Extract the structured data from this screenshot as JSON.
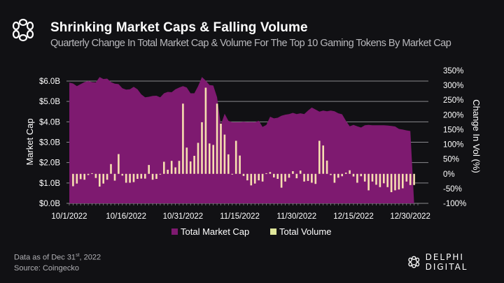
{
  "header": {
    "logo_icon": "delphi-knot-icon",
    "title": "Shrinking Market Caps & Falling Volume",
    "subtitle": "Quarterly Change In Total Market Cap & Volume For The Top 10 Gaming Tokens By Market Cap"
  },
  "footer": {
    "data_as_of_prefix": "Data as of Dec 31",
    "data_as_of_sup": "st",
    "data_as_of_suffix": ", 2022",
    "source": "Source: Coingecko",
    "brand": "DELPHI DIGITAL"
  },
  "colors": {
    "market_cap": "#7e1a70",
    "volume": "#f6deb0",
    "legend_volume": "#dfe69a",
    "background": "#111114"
  },
  "chart_data": {
    "type": "area+bar",
    "title": "Shrinking Market Caps & Falling Volume",
    "xlabel": "",
    "ylabel_left": "Market Cap",
    "ylabel_right": "Change In Vol (%)",
    "ylim_left": [
      0,
      6.0
    ],
    "ylim_right": [
      -100,
      350
    ],
    "left_ticks": [
      "$0.0B",
      "$1.0B",
      "$2.0B",
      "$3.0B",
      "$4.0B",
      "$5.0B",
      "$6.0B"
    ],
    "right_ticks": [
      "-100%",
      "-50%",
      "0%",
      "50%",
      "100%",
      "150%",
      "200%",
      "250%",
      "300%",
      "350%"
    ],
    "x_ticks": [
      "10/1/2022",
      "10/16/2022",
      "10/31/2022",
      "11/15/2022",
      "11/30/2022",
      "12/15/2022",
      "12/30/2022"
    ],
    "x_range_days": [
      0,
      92
    ],
    "x_start_date": "10/1/2022",
    "grid": true,
    "legend": [
      "Total Market Cap",
      "Total Volume"
    ],
    "legend_position": "bottom-center",
    "series": [
      {
        "name": "Total Market Cap",
        "type": "area",
        "axis": "left",
        "unit": "USD billions",
        "day_offset": [
          0,
          1,
          2,
          3,
          4,
          5,
          6,
          7,
          8,
          9,
          10,
          11,
          12,
          13,
          14,
          15,
          16,
          17,
          18,
          19,
          20,
          21,
          22,
          23,
          24,
          25,
          26,
          27,
          28,
          29,
          30,
          31,
          32,
          33,
          34,
          35,
          36,
          37,
          38,
          39,
          40,
          41,
          42,
          43,
          44,
          45,
          46,
          47,
          48,
          49,
          50,
          51,
          52,
          53,
          54,
          55,
          56,
          57,
          58,
          59,
          60,
          61,
          62,
          63,
          64,
          65,
          66,
          67,
          68,
          69,
          70,
          71,
          72,
          73,
          74,
          75,
          76,
          77,
          78,
          79,
          80,
          81,
          82,
          83,
          84,
          85,
          86,
          87,
          88,
          89,
          90,
          91
        ],
        "values": [
          5.92,
          5.88,
          5.75,
          5.85,
          5.95,
          6.0,
          5.95,
          5.93,
          6.2,
          6.1,
          6.12,
          5.95,
          5.87,
          5.85,
          5.65,
          5.58,
          5.6,
          5.72,
          5.6,
          5.35,
          5.2,
          5.23,
          5.27,
          5.28,
          5.2,
          5.4,
          5.47,
          5.45,
          5.6,
          5.68,
          5.75,
          5.68,
          5.4,
          5.4,
          5.75,
          6.2,
          6.02,
          5.8,
          5.78,
          5.2,
          3.85,
          4.4,
          4.05,
          3.98,
          3.98,
          3.98,
          4.0,
          3.98,
          3.99,
          3.98,
          4.05,
          3.75,
          3.85,
          4.25,
          4.17,
          4.2,
          4.3,
          4.35,
          4.38,
          4.44,
          4.38,
          4.42,
          4.38,
          4.55,
          4.7,
          4.6,
          4.5,
          4.55,
          4.52,
          4.55,
          4.52,
          4.42,
          4.37,
          4.05,
          3.78,
          3.85,
          3.78,
          3.72,
          3.83,
          3.85,
          3.83,
          3.83,
          3.83,
          3.83,
          3.82,
          3.8,
          3.77,
          3.65,
          3.62,
          3.58,
          3.55,
          0.0
        ]
      },
      {
        "name": "Total Volume",
        "type": "bar",
        "axis": "right",
        "unit": "percent change",
        "day_offset": [
          1,
          2,
          3,
          4,
          5,
          6,
          7,
          8,
          9,
          10,
          11,
          12,
          13,
          14,
          15,
          16,
          17,
          18,
          19,
          20,
          21,
          22,
          23,
          24,
          25,
          26,
          27,
          28,
          29,
          30,
          31,
          32,
          33,
          34,
          35,
          36,
          37,
          38,
          39,
          40,
          41,
          42,
          43,
          44,
          45,
          46,
          47,
          48,
          49,
          50,
          51,
          52,
          53,
          54,
          55,
          56,
          57,
          58,
          59,
          60,
          61,
          62,
          63,
          64,
          65,
          66,
          67,
          68,
          69,
          70,
          71,
          72,
          73,
          74,
          75,
          76,
          77,
          78,
          79,
          80,
          81,
          82,
          83,
          84,
          85,
          86,
          87,
          88,
          89,
          90,
          91
        ],
        "values": [
          -42,
          -33,
          -18,
          -20,
          -4,
          2,
          -14,
          -43,
          -33,
          -20,
          33,
          -23,
          67,
          -6,
          -30,
          -30,
          -28,
          -17,
          -16,
          -16,
          30,
          -20,
          -17,
          -2,
          41,
          14,
          44,
          22,
          44,
          238,
          89,
          42,
          61,
          105,
          175,
          292,
          103,
          98,
          238,
          170,
          133,
          66,
          -2,
          112,
          62,
          -7,
          -22,
          -39,
          -33,
          -22,
          -26,
          2,
          6,
          -12,
          -17,
          -47,
          -26,
          -13,
          9,
          -15,
          11,
          -26,
          -24,
          -30,
          -34,
          112,
          96,
          45,
          -4,
          -30,
          -13,
          -8,
          4,
          12,
          -9,
          -30,
          -8,
          -26,
          -56,
          -26,
          -37,
          -45,
          -32,
          -45,
          -62,
          -56,
          -53,
          -49,
          -26,
          -38,
          -38
        ]
      }
    ]
  }
}
